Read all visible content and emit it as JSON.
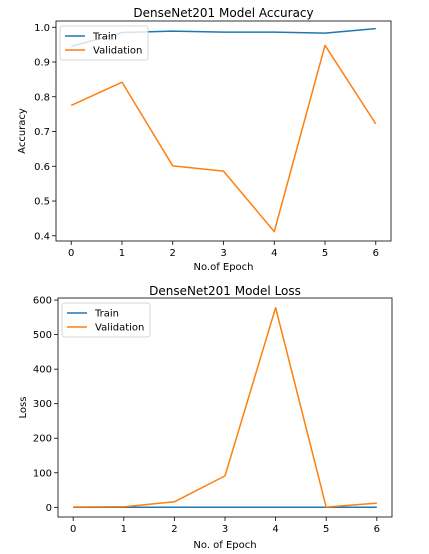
{
  "chart_data": [
    {
      "type": "line",
      "title": "DenseNet201 Model Accuracy",
      "xlabel": "No.of Epoch",
      "ylabel": "Accuracy",
      "x": [
        0,
        1,
        2,
        3,
        4,
        5,
        6
      ],
      "xticks": [
        0,
        1,
        2,
        3,
        4,
        5,
        6
      ],
      "yticks": [
        0.4,
        0.5,
        0.6,
        0.7,
        0.8,
        0.9,
        1.0
      ],
      "xlim": [
        -0.3,
        6.3
      ],
      "ylim": [
        0.385,
        1.018
      ],
      "grid": false,
      "legend": "top-left",
      "series": [
        {
          "name": "Train",
          "color": "#1f77b4",
          "values": [
            0.945,
            0.985,
            0.989,
            0.986,
            0.986,
            0.983,
            0.996
          ]
        },
        {
          "name": "Validation",
          "color": "#ff7f0e",
          "values": [
            0.775,
            0.842,
            0.601,
            0.586,
            0.412,
            0.948,
            0.722
          ]
        }
      ]
    },
    {
      "type": "line",
      "title": "DenseNet201 Model Loss",
      "xlabel": "No. of Epoch",
      "ylabel": "Loss",
      "x": [
        0,
        1,
        2,
        3,
        4,
        5,
        6
      ],
      "xticks": [
        0,
        1,
        2,
        3,
        4,
        5,
        6
      ],
      "yticks": [
        0,
        100,
        200,
        300,
        400,
        500,
        600
      ],
      "xlim": [
        -0.3,
        6.3
      ],
      "ylim": [
        -28,
        606
      ],
      "grid": false,
      "legend": "top-left",
      "series": [
        {
          "name": "Train",
          "color": "#1f77b4",
          "values": [
            0.2,
            0.1,
            0.1,
            0.1,
            0.1,
            0.1,
            0.1
          ]
        },
        {
          "name": "Validation",
          "color": "#ff7f0e",
          "values": [
            1,
            1.5,
            16,
            91,
            578,
            0.5,
            12
          ]
        }
      ]
    }
  ]
}
